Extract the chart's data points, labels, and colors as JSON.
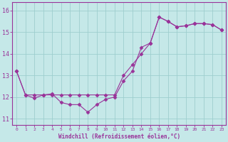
{
  "line1_x": [
    0,
    1,
    2,
    3,
    4,
    5,
    6,
    7,
    8,
    9,
    10,
    11,
    12,
    13,
    14,
    15,
    16,
    17,
    18,
    19,
    20,
    21,
    22,
    23
  ],
  "line1_y": [
    13.2,
    12.1,
    11.95,
    12.1,
    12.15,
    11.75,
    11.65,
    11.65,
    11.3,
    11.65,
    11.9,
    12.0,
    12.75,
    13.2,
    14.3,
    14.5,
    15.7,
    15.5,
    15.25,
    15.3,
    15.4,
    15.4,
    15.35,
    15.1
  ],
  "line2_x": [
    0,
    1,
    2,
    3,
    4,
    5,
    6,
    7,
    8,
    9,
    10,
    11,
    12,
    13,
    14,
    15,
    16,
    17,
    18,
    19,
    20,
    21,
    22,
    23
  ],
  "line2_y": [
    13.2,
    12.1,
    12.1,
    12.1,
    12.1,
    12.1,
    12.1,
    12.1,
    12.1,
    12.1,
    12.1,
    12.1,
    13.0,
    13.5,
    14.0,
    14.5,
    15.7,
    15.5,
    15.25,
    15.3,
    15.4,
    15.4,
    15.35,
    15.1
  ],
  "line_color": "#993399",
  "bg_color": "#C5E8E8",
  "grid_color": "#9ECECE",
  "xlabel": "Windchill (Refroidissement éolien,°C)",
  "ylim": [
    10.7,
    16.4
  ],
  "xlim": [
    -0.5,
    23.5
  ],
  "yticks": [
    11,
    12,
    13,
    14,
    15,
    16
  ],
  "xticks": [
    0,
    1,
    2,
    3,
    4,
    5,
    6,
    7,
    8,
    9,
    10,
    11,
    12,
    13,
    14,
    15,
    16,
    17,
    18,
    19,
    20,
    21,
    22,
    23
  ]
}
